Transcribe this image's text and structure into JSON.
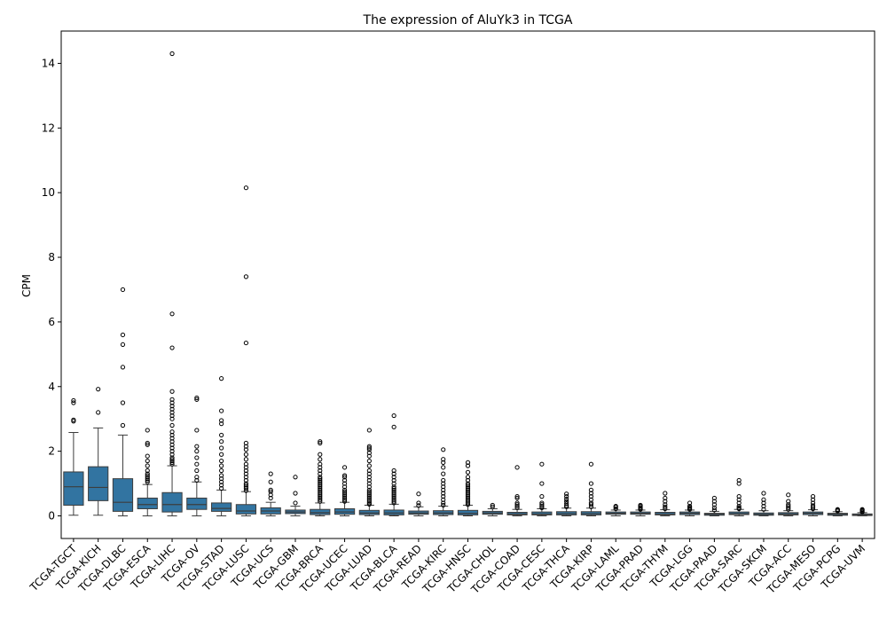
{
  "chart_data": {
    "type": "box",
    "title": "The expression of AluYk3 in TCGA",
    "xlabel": "",
    "ylabel": "CPM",
    "ylim": [
      -0.7,
      15.0
    ],
    "yticks": [
      0,
      2,
      4,
      6,
      8,
      10,
      12,
      14
    ],
    "grid": false,
    "box_color": "#3274a1",
    "categories": [
      "TCGA-TGCT",
      "TCGA-KICH",
      "TCGA-DLBC",
      "TCGA-ESCA",
      "TCGA-LIHC",
      "TCGA-OV",
      "TCGA-STAD",
      "TCGA-LUSC",
      "TCGA-UCS",
      "TCGA-GBM",
      "TCGA-BRCA",
      "TCGA-UCEC",
      "TCGA-LUAD",
      "TCGA-BLCA",
      "TCGA-READ",
      "TCGA-KIRC",
      "TCGA-HNSC",
      "TCGA-CHOL",
      "TCGA-COAD",
      "TCGA-CESC",
      "TCGA-THCA",
      "TCGA-KIRP",
      "TCGA-LAML",
      "TCGA-PRAD",
      "TCGA-THYM",
      "TCGA-LGG",
      "TCGA-PAAD",
      "TCGA-SARC",
      "TCGA-SKCM",
      "TCGA-ACC",
      "TCGA-MESO",
      "TCGA-PCPG",
      "TCGA-UVM"
    ],
    "boxes": [
      {
        "whislo": 0.02,
        "q1": 0.33,
        "med": 0.9,
        "q3": 1.36,
        "whishi": 2.58,
        "fliers": [
          2.93,
          2.97,
          3.5,
          3.57
        ]
      },
      {
        "whislo": 0.02,
        "q1": 0.47,
        "med": 0.88,
        "q3": 1.52,
        "whishi": 2.72,
        "fliers": [
          3.2,
          3.92
        ]
      },
      {
        "whislo": 0.0,
        "q1": 0.14,
        "med": 0.42,
        "q3": 1.15,
        "whishi": 2.5,
        "fliers": [
          2.8,
          3.5,
          4.6,
          5.3,
          5.6,
          7.0
        ]
      },
      {
        "whislo": 0.0,
        "q1": 0.22,
        "med": 0.35,
        "q3": 0.55,
        "whishi": 0.97,
        "fliers": [
          1.05,
          1.1,
          1.15,
          1.2,
          1.25,
          1.3,
          1.4,
          1.55,
          1.7,
          1.85,
          2.2,
          2.25,
          2.65
        ]
      },
      {
        "whislo": 0.0,
        "q1": 0.12,
        "med": 0.35,
        "q3": 0.72,
        "whishi": 1.55,
        "fliers": [
          1.6,
          1.65,
          1.7,
          1.75,
          1.8,
          1.9,
          2.0,
          2.1,
          2.2,
          2.3,
          2.4,
          2.5,
          2.6,
          2.8,
          3.0,
          3.1,
          3.2,
          3.3,
          3.4,
          3.5,
          3.6,
          3.85,
          5.2,
          6.25,
          14.3
        ]
      },
      {
        "whislo": 0.0,
        "q1": 0.2,
        "med": 0.35,
        "q3": 0.55,
        "whishi": 1.05,
        "fliers": [
          1.1,
          1.2,
          1.4,
          1.6,
          1.8,
          2.0,
          2.15,
          2.65,
          3.6,
          3.65
        ]
      },
      {
        "whislo": 0.0,
        "q1": 0.14,
        "med": 0.23,
        "q3": 0.4,
        "whishi": 0.8,
        "fliers": [
          0.85,
          0.95,
          1.05,
          1.15,
          1.25,
          1.4,
          1.55,
          1.7,
          1.9,
          2.1,
          2.3,
          2.5,
          2.85,
          2.95,
          3.25,
          4.25
        ]
      },
      {
        "whislo": 0.0,
        "q1": 0.06,
        "med": 0.15,
        "q3": 0.35,
        "whishi": 0.75,
        "fliers": [
          0.78,
          0.85,
          0.9,
          0.95,
          1.0,
          1.1,
          1.2,
          1.3,
          1.4,
          1.5,
          1.6,
          1.75,
          1.9,
          2.05,
          2.15,
          2.25,
          5.35,
          7.4,
          10.15
        ]
      },
      {
        "whislo": 0.0,
        "q1": 0.06,
        "med": 0.15,
        "q3": 0.25,
        "whishi": 0.42,
        "fliers": [
          0.55,
          0.65,
          0.75,
          0.8,
          1.05,
          1.3
        ]
      },
      {
        "whislo": 0.0,
        "q1": 0.07,
        "med": 0.12,
        "q3": 0.18,
        "whishi": 0.3,
        "fliers": [
          0.4,
          0.7,
          1.2
        ]
      },
      {
        "whislo": 0.0,
        "q1": 0.04,
        "med": 0.1,
        "q3": 0.2,
        "whishi": 0.4,
        "fliers": [
          0.45,
          0.5,
          0.55,
          0.6,
          0.65,
          0.7,
          0.75,
          0.8,
          0.85,
          0.9,
          0.95,
          1.0,
          1.05,
          1.1,
          1.15,
          1.2,
          1.3,
          1.4,
          1.5,
          1.6,
          1.75,
          1.9,
          2.25,
          2.3
        ]
      },
      {
        "whislo": 0.0,
        "q1": 0.05,
        "med": 0.12,
        "q3": 0.22,
        "whishi": 0.42,
        "fliers": [
          0.45,
          0.5,
          0.55,
          0.6,
          0.65,
          0.7,
          0.75,
          0.8,
          0.9,
          1.0,
          1.1,
          1.2,
          1.25,
          1.5
        ]
      },
      {
        "whislo": 0.0,
        "q1": 0.04,
        "med": 0.09,
        "q3": 0.17,
        "whishi": 0.33,
        "fliers": [
          0.36,
          0.4,
          0.45,
          0.5,
          0.55,
          0.6,
          0.65,
          0.7,
          0.75,
          0.8,
          0.9,
          1.0,
          1.1,
          1.2,
          1.3,
          1.4,
          1.55,
          1.7,
          1.85,
          1.95,
          2.05,
          2.1,
          2.15,
          2.65
        ]
      },
      {
        "whislo": 0.0,
        "q1": 0.03,
        "med": 0.09,
        "q3": 0.18,
        "whishi": 0.36,
        "fliers": [
          0.4,
          0.45,
          0.5,
          0.55,
          0.6,
          0.65,
          0.7,
          0.75,
          0.8,
          0.85,
          0.9,
          1.0,
          1.1,
          1.2,
          1.3,
          1.4,
          2.75,
          3.1
        ]
      },
      {
        "whislo": 0.0,
        "q1": 0.05,
        "med": 0.09,
        "q3": 0.15,
        "whishi": 0.28,
        "fliers": [
          0.32,
          0.4,
          0.68
        ]
      },
      {
        "whislo": 0.0,
        "q1": 0.04,
        "med": 0.09,
        "q3": 0.16,
        "whishi": 0.3,
        "fliers": [
          0.33,
          0.4,
          0.5,
          0.6,
          0.7,
          0.8,
          0.9,
          1.0,
          1.1,
          1.3,
          1.5,
          1.65,
          1.75,
          2.05
        ]
      },
      {
        "whislo": 0.0,
        "q1": 0.03,
        "med": 0.08,
        "q3": 0.17,
        "whishi": 0.33,
        "fliers": [
          0.35,
          0.4,
          0.45,
          0.5,
          0.55,
          0.6,
          0.65,
          0.7,
          0.75,
          0.8,
          0.85,
          0.9,
          0.95,
          1.0,
          1.1,
          1.2,
          1.35,
          1.55,
          1.65
        ]
      },
      {
        "whislo": 0.0,
        "q1": 0.05,
        "med": 0.09,
        "q3": 0.14,
        "whishi": 0.22,
        "fliers": [
          0.28,
          0.33
        ]
      },
      {
        "whislo": 0.0,
        "q1": 0.03,
        "med": 0.06,
        "q3": 0.11,
        "whishi": 0.2,
        "fliers": [
          0.25,
          0.3,
          0.35,
          0.4,
          0.55,
          0.6,
          1.5
        ]
      },
      {
        "whislo": 0.0,
        "q1": 0.03,
        "med": 0.06,
        "q3": 0.12,
        "whishi": 0.22,
        "fliers": [
          0.25,
          0.3,
          0.35,
          0.4,
          0.6,
          1.0,
          1.6
        ]
      },
      {
        "whislo": 0.0,
        "q1": 0.03,
        "med": 0.07,
        "q3": 0.13,
        "whishi": 0.24,
        "fliers": [
          0.28,
          0.32,
          0.38,
          0.45,
          0.52,
          0.6,
          0.68
        ]
      },
      {
        "whislo": 0.0,
        "q1": 0.03,
        "med": 0.07,
        "q3": 0.13,
        "whishi": 0.24,
        "fliers": [
          0.28,
          0.35,
          0.4,
          0.5,
          0.6,
          0.7,
          0.8,
          1.0,
          1.6
        ]
      },
      {
        "whislo": 0.0,
        "q1": 0.05,
        "med": 0.08,
        "q3": 0.12,
        "whishi": 0.18,
        "fliers": [
          0.22,
          0.27,
          0.3
        ]
      },
      {
        "whislo": 0.0,
        "q1": 0.05,
        "med": 0.08,
        "q3": 0.12,
        "whishi": 0.18,
        "fliers": [
          0.2,
          0.23,
          0.26,
          0.3,
          0.33
        ]
      },
      {
        "whislo": 0.0,
        "q1": 0.03,
        "med": 0.06,
        "q3": 0.11,
        "whishi": 0.19,
        "fliers": [
          0.22,
          0.28,
          0.35,
          0.45,
          0.55,
          0.7
        ]
      },
      {
        "whislo": 0.0,
        "q1": 0.04,
        "med": 0.08,
        "q3": 0.12,
        "whishi": 0.18,
        "fliers": [
          0.2,
          0.23,
          0.26,
          0.3,
          0.4
        ]
      },
      {
        "whislo": 0.0,
        "q1": 0.02,
        "med": 0.05,
        "q3": 0.08,
        "whishi": 0.14,
        "fliers": [
          0.18,
          0.25,
          0.35,
          0.45,
          0.55
        ]
      },
      {
        "whislo": 0.0,
        "q1": 0.04,
        "med": 0.07,
        "q3": 0.12,
        "whishi": 0.2,
        "fliers": [
          0.22,
          0.25,
          0.3,
          0.4,
          0.5,
          0.6,
          1.0,
          1.1
        ]
      },
      {
        "whislo": 0.0,
        "q1": 0.02,
        "med": 0.05,
        "q3": 0.09,
        "whishi": 0.16,
        "fliers": [
          0.2,
          0.3,
          0.4,
          0.5,
          0.7
        ]
      },
      {
        "whislo": 0.0,
        "q1": 0.03,
        "med": 0.06,
        "q3": 0.1,
        "whishi": 0.16,
        "fliers": [
          0.2,
          0.25,
          0.3,
          0.35,
          0.45,
          0.65
        ]
      },
      {
        "whislo": 0.0,
        "q1": 0.04,
        "med": 0.08,
        "q3": 0.12,
        "whishi": 0.19,
        "fliers": [
          0.22,
          0.27,
          0.32,
          0.4,
          0.5,
          0.6
        ]
      },
      {
        "whislo": 0.0,
        "q1": 0.02,
        "med": 0.05,
        "q3": 0.08,
        "whishi": 0.13,
        "fliers": [
          0.15,
          0.18,
          0.2
        ]
      },
      {
        "whislo": 0.0,
        "q1": 0.01,
        "med": 0.03,
        "q3": 0.06,
        "whishi": 0.1,
        "fliers": [
          0.12,
          0.15,
          0.18,
          0.2
        ]
      }
    ]
  }
}
